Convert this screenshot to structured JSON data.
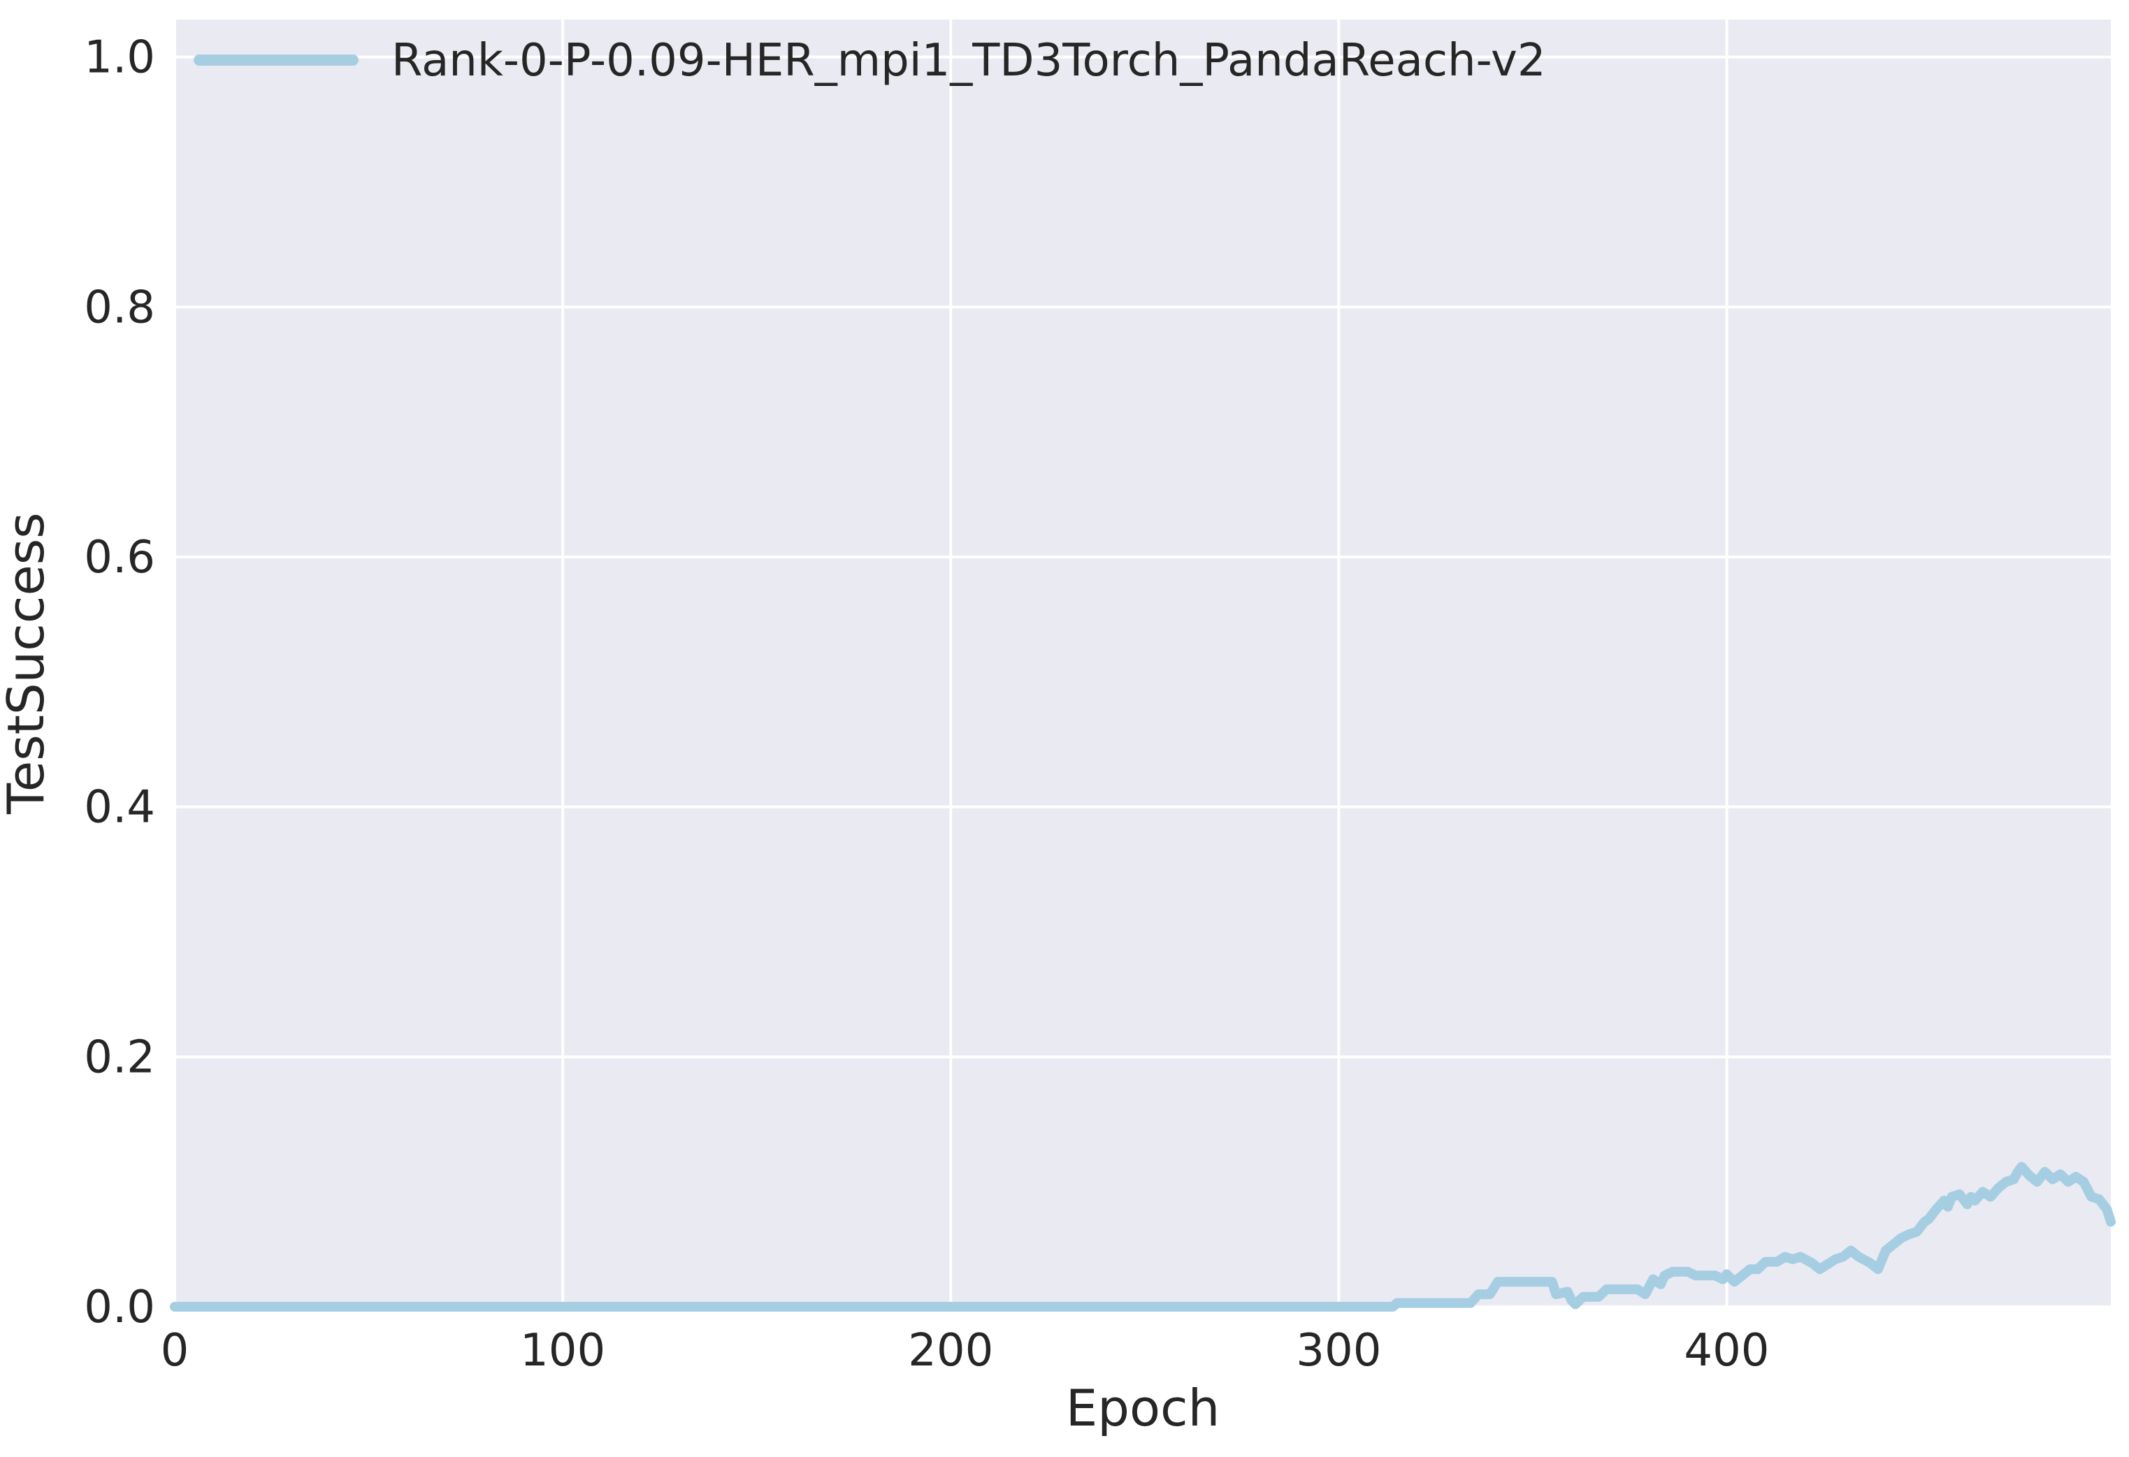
{
  "chart_data": {
    "type": "line",
    "title": "",
    "xlabel": "Epoch",
    "ylabel": "TestSuccess",
    "xlim": [
      0,
      499
    ],
    "ylim": [
      0.0,
      1.03
    ],
    "xticks": [
      0,
      100,
      200,
      300,
      400
    ],
    "xtick_labels": [
      "0",
      "100",
      "200",
      "300",
      "400"
    ],
    "yticks": [
      0.0,
      0.2,
      0.4,
      0.6,
      0.8,
      1.0
    ],
    "ytick_labels": [
      "0.0",
      "0.2",
      "0.4",
      "0.6",
      "0.8",
      "1.0"
    ],
    "grid": true,
    "legend_position": "top-left",
    "colors": {
      "background": "#eaeaf2",
      "grid": "#ffffff",
      "text": "#262626"
    },
    "series": [
      {
        "name": "Rank-0-P-0.09-HER_mpi1_TD3Torch_PandaReach-v2",
        "color": "#a6cee3",
        "x": [
          0,
          314,
          315,
          334,
          336,
          339,
          341,
          355,
          356,
          359,
          360,
          361,
          363,
          367,
          369,
          377,
          379,
          381,
          383,
          384,
          386,
          390,
          392,
          397,
          399,
          400,
          402,
          404,
          406,
          408,
          410,
          413,
          415,
          417,
          419,
          422,
          424,
          428,
          430,
          432,
          434,
          437,
          439,
          441,
          443,
          445,
          447,
          449,
          451,
          452,
          454,
          456,
          457,
          458,
          460,
          462,
          463,
          464,
          466,
          468,
          470,
          472,
          474,
          475,
          476,
          478,
          480,
          482,
          484,
          486,
          488,
          490,
          492,
          494,
          496,
          498,
          499
        ],
        "y": [
          0.0,
          0.0,
          0.003,
          0.003,
          0.01,
          0.01,
          0.02,
          0.02,
          0.01,
          0.012,
          0.005,
          0.002,
          0.008,
          0.008,
          0.014,
          0.014,
          0.01,
          0.022,
          0.018,
          0.025,
          0.028,
          0.028,
          0.025,
          0.025,
          0.022,
          0.026,
          0.02,
          0.025,
          0.03,
          0.03,
          0.036,
          0.036,
          0.04,
          0.038,
          0.04,
          0.035,
          0.03,
          0.038,
          0.04,
          0.045,
          0.04,
          0.035,
          0.03,
          0.045,
          0.05,
          0.055,
          0.058,
          0.06,
          0.068,
          0.07,
          0.078,
          0.085,
          0.08,
          0.088,
          0.09,
          0.082,
          0.088,
          0.085,
          0.092,
          0.088,
          0.095,
          0.1,
          0.102,
          0.108,
          0.112,
          0.105,
          0.1,
          0.108,
          0.102,
          0.106,
          0.1,
          0.104,
          0.1,
          0.088,
          0.086,
          0.078,
          0.068
        ]
      }
    ]
  }
}
